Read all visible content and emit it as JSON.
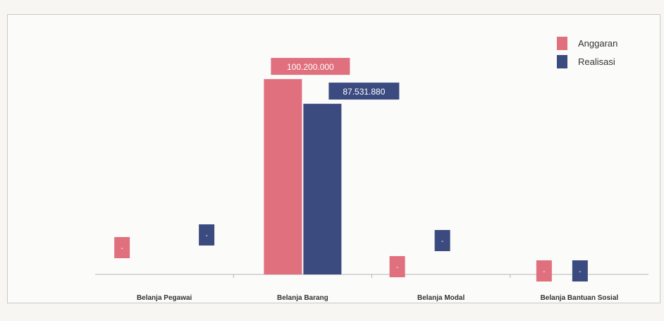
{
  "chart_data": {
    "type": "bar",
    "title": "",
    "xlabel": "",
    "ylabel": "",
    "categories": [
      "Belanja Pegawai",
      "Belanja Barang",
      "Belanja Modal",
      "Belanja Bantuan Sosial"
    ],
    "series": [
      {
        "name": "Anggaran",
        "color": "#e0707e",
        "values": [
          0,
          100200000,
          0,
          0
        ],
        "labels": [
          "-",
          "100.200.000",
          "-",
          "-"
        ]
      },
      {
        "name": "Realisasi",
        "color": "#3b4b80",
        "values": [
          0,
          87531880,
          0,
          0
        ],
        "labels": [
          "-",
          "87.531.880",
          "-",
          "-"
        ]
      }
    ],
    "ylim": [
      0,
      110000000
    ],
    "grid": false,
    "legend_position": "top-right"
  },
  "footer": {
    "text": ""
  }
}
